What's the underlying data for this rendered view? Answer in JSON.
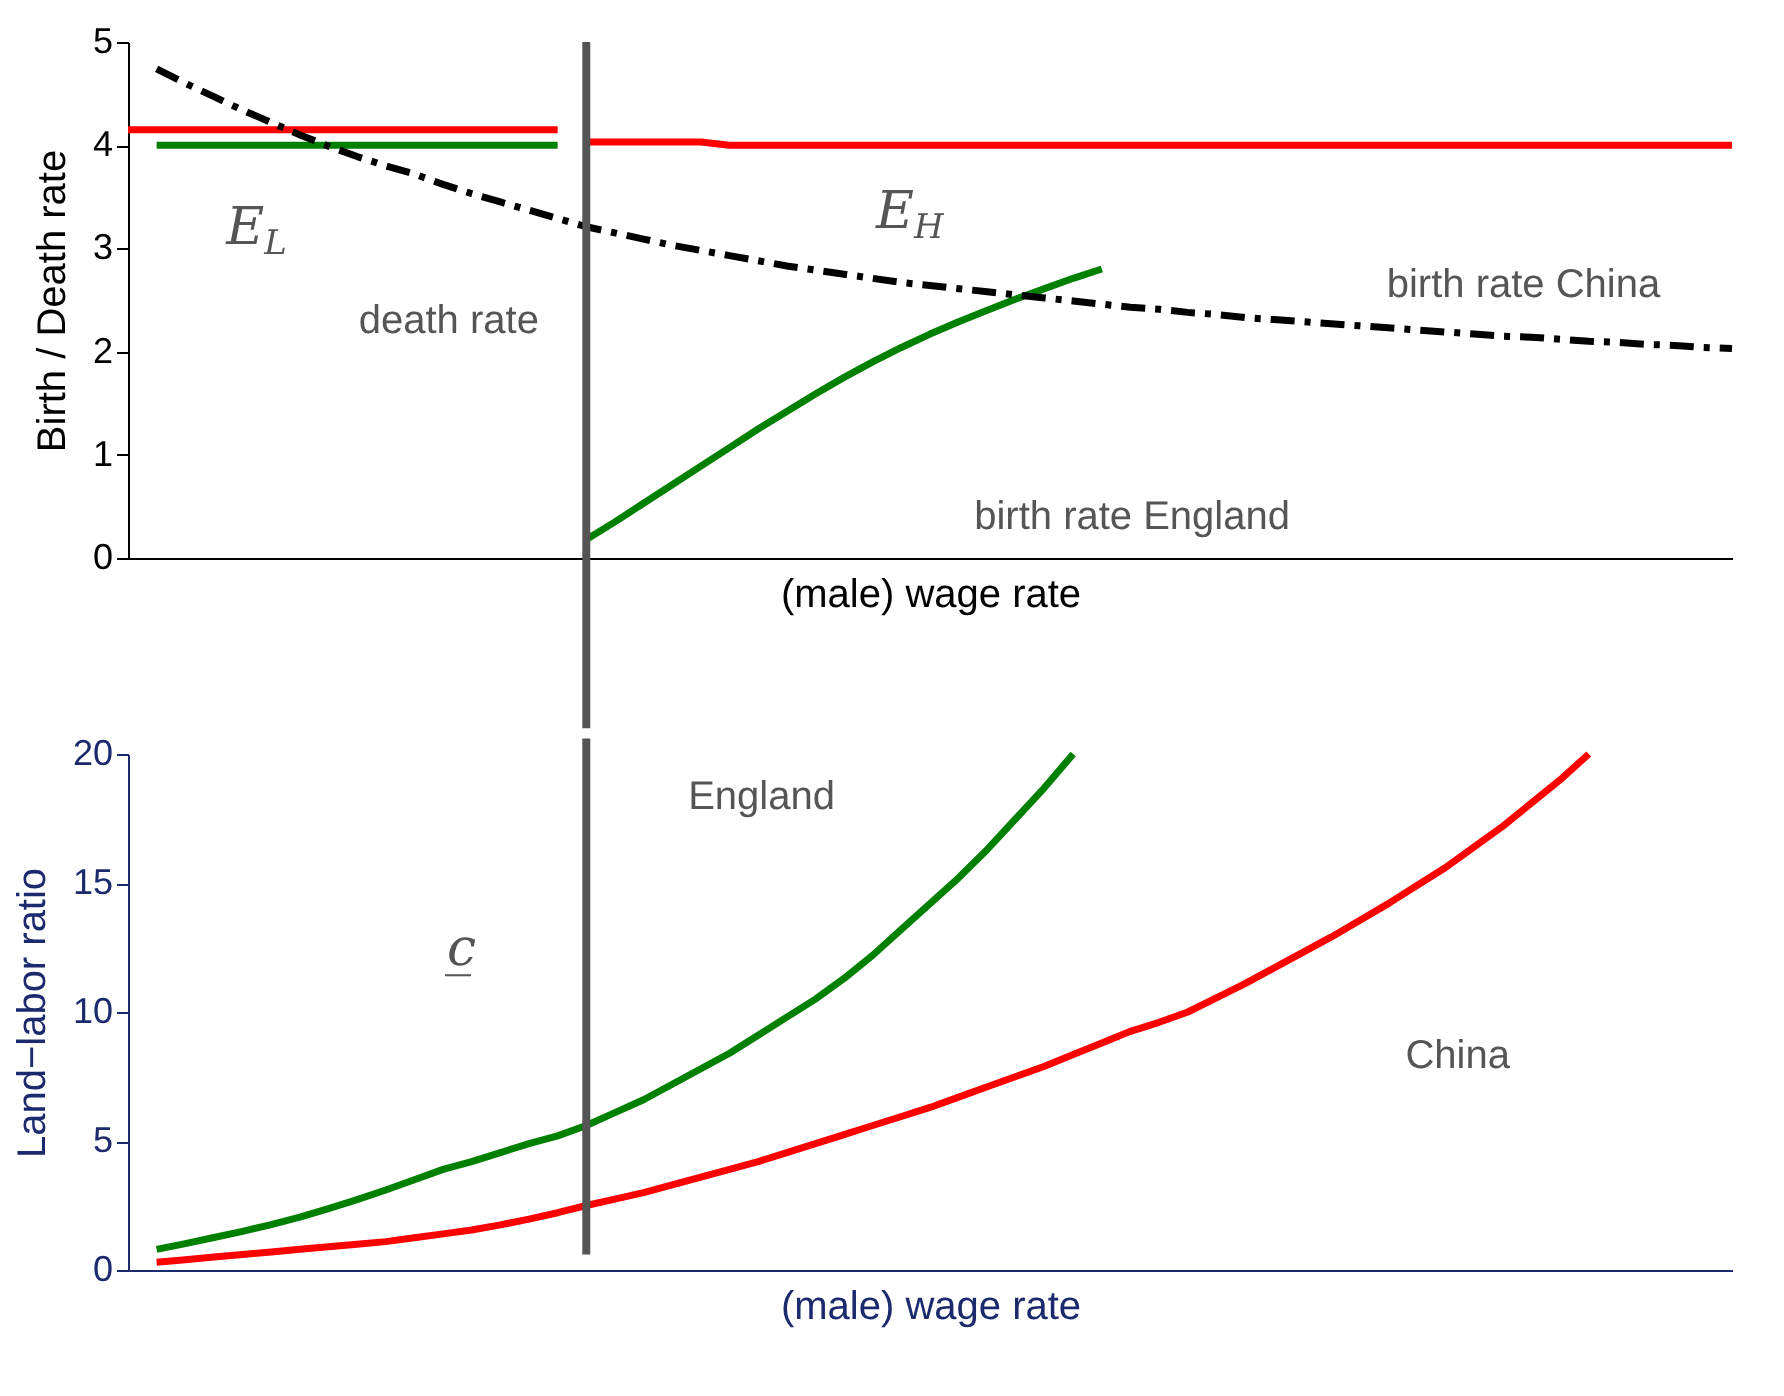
{
  "chart_data": [
    {
      "type": "line",
      "ylabel": "Birth / Death rate",
      "xlabel": "(male) wage rate",
      "ylim": [
        0,
        5
      ],
      "yticks": [
        0,
        1,
        2,
        3,
        4,
        5
      ],
      "tick_labels": "y",
      "grid": false,
      "categories": [
        null,
        null,
        null,
        null,
        null,
        null,
        null,
        null,
        null,
        null,
        null,
        null,
        null,
        null,
        null,
        null,
        null,
        null,
        null,
        null,
        null,
        null,
        null,
        null,
        null,
        null,
        null,
        null,
        null,
        null,
        null,
        null,
        null,
        null,
        null,
        null,
        null,
        null,
        null,
        null,
        null,
        null,
        null,
        null,
        null,
        null,
        null,
        null,
        null,
        null,
        null,
        null,
        null,
        null,
        null,
        null,
        null
      ],
      "series": [
        {
          "color": "#ff0000",
          "values": [
            4.15,
            4.15,
            4.15,
            4.15,
            4.15,
            4.15,
            4.15,
            4.15,
            4.15,
            4.15,
            4.15,
            4.15,
            4.15,
            4.15,
            4.15,
            4.15,
            null,
            null,
            null,
            null,
            null,
            null,
            null,
            null,
            null,
            null,
            null,
            null,
            null,
            null,
            null,
            null,
            null,
            null,
            null,
            null,
            null,
            null,
            null,
            null,
            null,
            null,
            null,
            null,
            null,
            null,
            null,
            null,
            null,
            null,
            null,
            null,
            null,
            null,
            null,
            null,
            null
          ]
        },
        {
          "color": "#ff0000",
          "values": [
            null,
            null,
            null,
            null,
            null,
            null,
            null,
            null,
            null,
            null,
            null,
            null,
            null,
            null,
            null,
            null,
            4.03,
            4.03,
            4.03,
            4.03,
            4.03,
            4.0,
            4.0,
            4.0,
            4.0,
            4.0,
            4.0,
            4.0,
            4.0,
            4.0,
            4.0,
            4.0,
            4.0,
            4.0,
            4.0,
            4.0,
            4.0,
            4.0,
            4.0,
            4.0,
            4.0,
            4.0,
            4.0,
            4.0,
            4.0,
            4.0,
            4.0,
            4.0,
            4.0,
            4.0,
            4.0,
            4.0,
            4.0,
            4.0,
            4.0,
            4.0,
            4.0
          ]
        },
        {
          "color": "#008000",
          "values": [
            null,
            4.0,
            4.0,
            4.0,
            4.0,
            4.0,
            4.0,
            4.0,
            4.0,
            4.0,
            4.0,
            4.0,
            4.0,
            4.0,
            4.0,
            4.0,
            null,
            null,
            null,
            null,
            null,
            null,
            null,
            null,
            null,
            null,
            null,
            null,
            null,
            null,
            null,
            null,
            null,
            null,
            null,
            null,
            null,
            null,
            null,
            null,
            null,
            null,
            null,
            null,
            null,
            null,
            null,
            null,
            null,
            null,
            null,
            null,
            null,
            null,
            null,
            null,
            null
          ]
        },
        {
          "color": "#008000",
          "values": [
            null,
            null,
            null,
            null,
            null,
            null,
            null,
            null,
            null,
            null,
            null,
            null,
            null,
            null,
            null,
            null,
            0.18,
            0.35,
            0.53,
            0.71,
            0.89,
            1.07,
            1.25,
            1.42,
            1.59,
            1.75,
            1.9,
            2.04,
            2.17,
            2.29,
            2.4,
            2.51,
            2.61,
            2.71,
            2.8,
            null,
            null,
            null,
            null,
            null,
            null,
            null,
            null,
            null,
            null,
            null,
            null,
            null,
            null,
            null,
            null,
            null,
            null,
            null,
            null,
            null,
            null
          ]
        },
        {
          "color": "#000000",
          "line_style": "dashdot",
          "values": [
            null,
            4.74,
            4.6,
            4.47,
            4.34,
            4.22,
            4.1,
            3.99,
            3.89,
            3.8,
            3.72,
            3.62,
            3.53,
            3.45,
            3.37,
            3.29,
            3.21,
            3.15,
            3.09,
            3.03,
            2.98,
            2.93,
            2.88,
            2.83,
            2.79,
            2.75,
            2.71,
            2.67,
            2.64,
            2.61,
            2.58,
            2.55,
            2.52,
            2.49,
            2.46,
            2.43,
            2.41,
            2.38,
            2.36,
            2.33,
            2.31,
            2.29,
            2.27,
            2.25,
            2.23,
            2.21,
            2.19,
            2.17,
            2.15,
            2.14,
            2.12,
            2.1,
            2.09,
            2.07,
            2.06,
            2.04,
            2.03
          ]
        }
      ],
      "annotations": [
        "E$_{L}$",
        "death rate",
        "E$_{H}$",
        "birth rate China",
        "birth rate England"
      ]
    },
    {
      "type": "line",
      "ylabel": "Land−labor ratio",
      "xlabel": "(male) wage rate",
      "ylim": [
        0,
        20
      ],
      "yticks": [
        0,
        5,
        10,
        15,
        20
      ],
      "tick_labels": "y",
      "grid": false,
      "categories": [
        null,
        null,
        null,
        null,
        null,
        null,
        null,
        null,
        null,
        null,
        null,
        null,
        null,
        null,
        null,
        null,
        null,
        null,
        null,
        null,
        null,
        null,
        null,
        null,
        null,
        null,
        null,
        null,
        null,
        null,
        null,
        null,
        null,
        null,
        null,
        null,
        null,
        null,
        null,
        null,
        null,
        null,
        null,
        null,
        null,
        null,
        null,
        null,
        null,
        null,
        null,
        null,
        null,
        null,
        null,
        null,
        null
      ],
      "series": [
        {
          "color": "#008000",
          "values": [
            null,
            0.8,
            1.02,
            1.26,
            1.5,
            1.76,
            2.05,
            2.38,
            2.73,
            3.1,
            3.5,
            3.9,
            4.2,
            4.55,
            4.9,
            5.2,
            5.6,
            6.1,
            6.6,
            7.2,
            7.8,
            8.4,
            9.1,
            9.8,
            10.5,
            11.3,
            12.2,
            13.2,
            14.2,
            15.2,
            16.3,
            17.5,
            18.7,
            20,
            null,
            null,
            null,
            null,
            null,
            null,
            null,
            null,
            null,
            null,
            null,
            null,
            null,
            null,
            null,
            null,
            null,
            null,
            null,
            null,
            null,
            null,
            null
          ]
        },
        {
          "color": "#ff0000",
          "values": [
            null,
            0.3,
            0.4,
            0.5,
            0.6,
            0.7,
            0.8,
            0.9,
            1.0,
            1.1,
            1.25,
            1.4,
            1.55,
            1.75,
            1.97,
            2.22,
            2.5,
            2.75,
            3.0,
            3.3,
            3.6,
            3.9,
            4.2,
            4.55,
            4.9,
            5.25,
            5.6,
            5.95,
            6.3,
            6.7,
            7.1,
            7.5,
            7.9,
            8.35,
            8.8,
            9.25,
            9.6,
            10.0,
            10.55,
            11.1,
            11.7,
            12.3,
            12.9,
            13.55,
            14.2,
            14.9,
            15.6,
            16.4,
            17.2,
            18.1,
            19.0,
            20,
            null,
            null,
            null,
            null,
            null
          ]
        }
      ],
      "annotations": [
        "England",
        "c̲",
        "China"
      ]
    }
  ]
}
